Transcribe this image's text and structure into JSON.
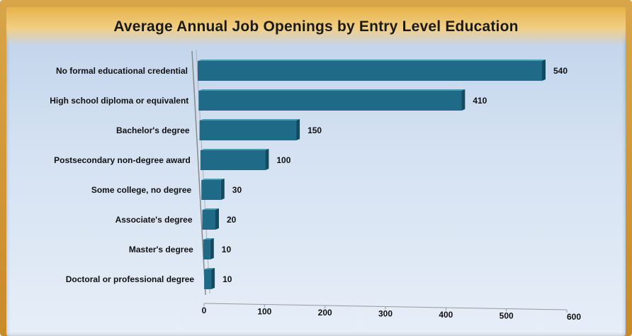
{
  "chart_data": {
    "type": "bar",
    "orientation": "horizontal",
    "title": "Average Annual Job Openings by Entry Level Education",
    "categories": [
      "No formal educational credential",
      "High school diploma or equivalent",
      "Bachelor's degree",
      "Postsecondary non-degree award",
      "Some college, no degree",
      "Associate's degree",
      "Master's degree",
      "Doctoral or professional degree"
    ],
    "values": [
      540,
      410,
      150,
      100,
      30,
      20,
      10,
      10
    ],
    "value_labels": [
      "540",
      "410",
      "150",
      "100",
      "30",
      "20",
      "10",
      "10"
    ],
    "xlim": [
      0,
      600
    ],
    "x_ticks": [
      "0",
      "100",
      "200",
      "300",
      "400",
      "500",
      "600"
    ],
    "xlabel": "",
    "ylabel": "",
    "grid": false,
    "legend": "none",
    "bar_color": "#1f6a86",
    "bar_top_color": "#4a9ab4",
    "bar_side_color": "#124a60",
    "frame_color": "#d39b3c"
  }
}
